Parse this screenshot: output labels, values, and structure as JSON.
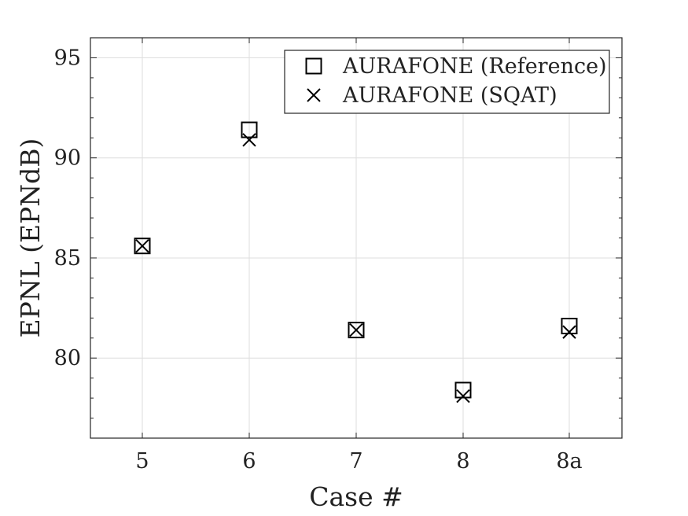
{
  "chart_data": {
    "type": "scatter",
    "title": "",
    "xlabel": "Case #",
    "ylabel": "EPNL (EPNdB)",
    "categories": [
      "5",
      "6",
      "7",
      "8",
      "8a"
    ],
    "ylim": [
      76,
      96
    ],
    "yticks": [
      80,
      85,
      90,
      95
    ],
    "grid": true,
    "legend_position": "top-right",
    "series": [
      {
        "name": "AURAFONE (Reference)",
        "marker": "square",
        "values": [
          85.6,
          91.4,
          81.4,
          78.4,
          81.6
        ]
      },
      {
        "name": "AURAFONE (SQAT)",
        "marker": "x",
        "values": [
          85.6,
          90.9,
          81.4,
          78.1,
          81.3
        ]
      }
    ]
  }
}
